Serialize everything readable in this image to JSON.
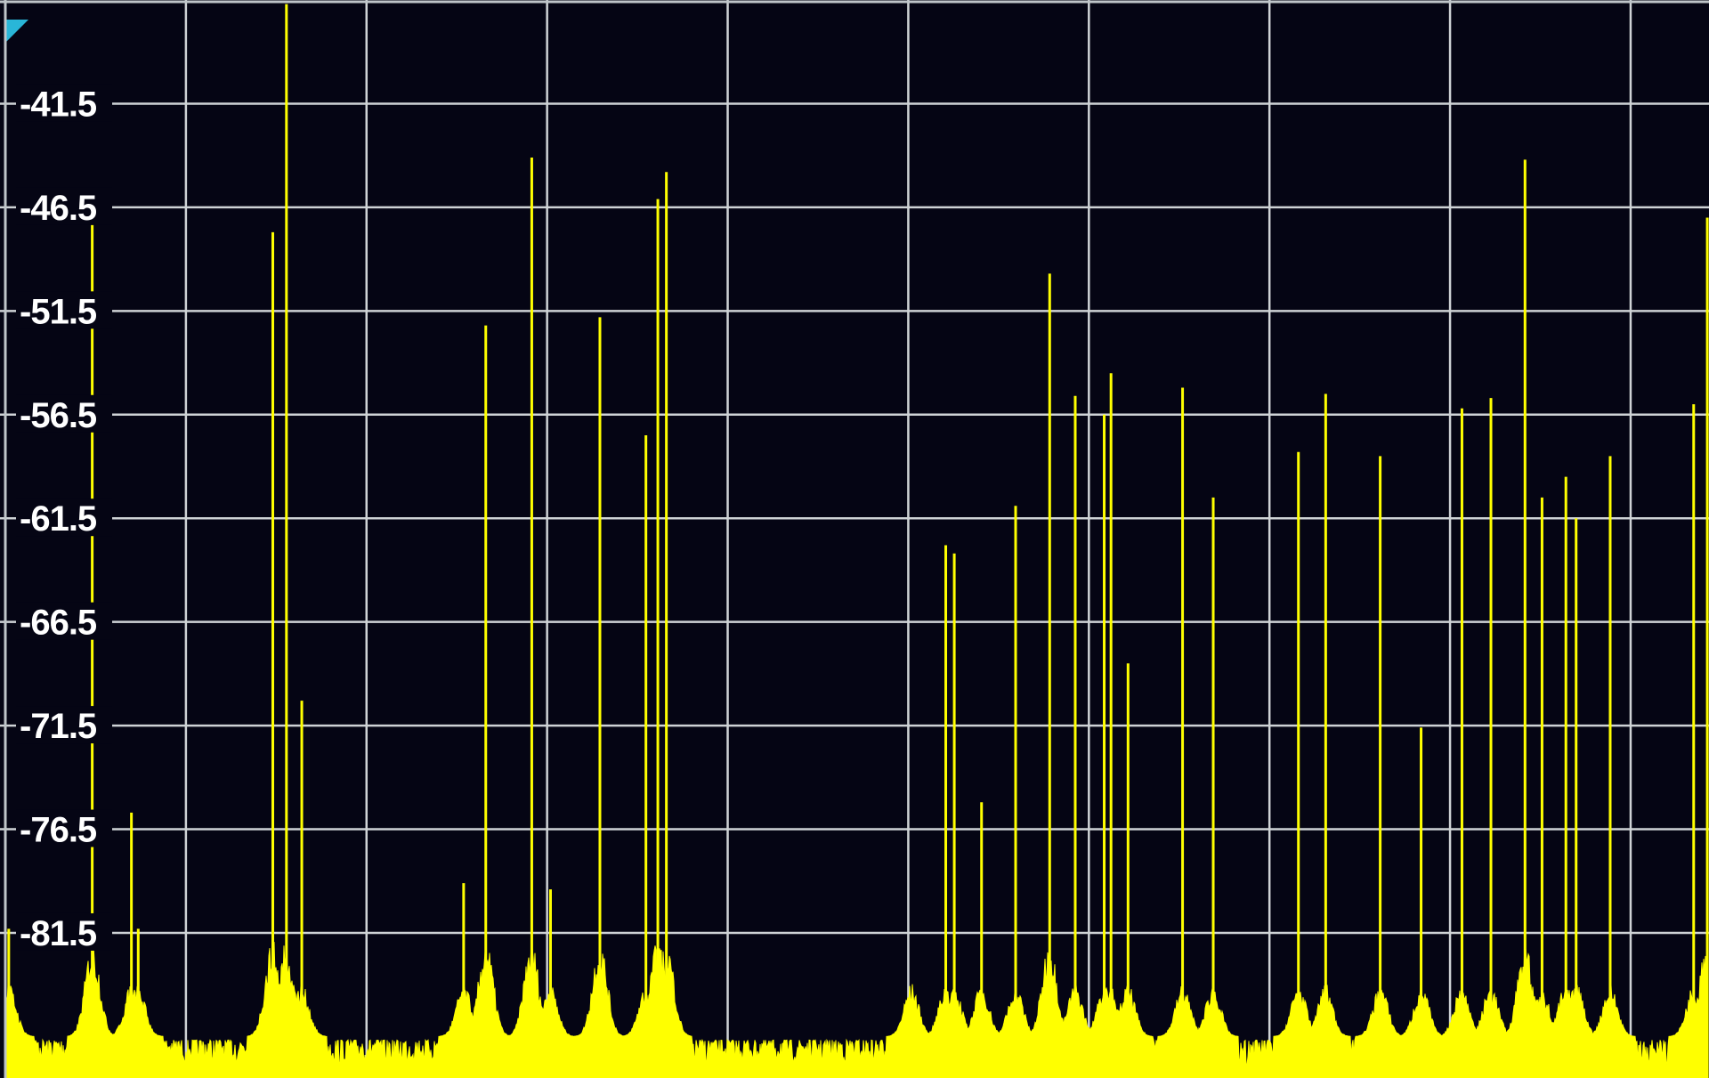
{
  "chart_data": {
    "type": "line",
    "title": "",
    "xlabel": "",
    "ylabel": "",
    "grid": true,
    "colors": {
      "background": "#050514",
      "grid": "#cfd3d6",
      "trace": "#ffff00",
      "marker": "#29b6d8"
    },
    "x": {
      "range": [
        0,
        100
      ],
      "ticks": [
        0,
        10.6,
        21.2,
        31.8,
        42.4,
        53.0,
        63.6,
        74.2,
        84.8,
        95.4
      ]
    },
    "y": {
      "range": [
        -88.5,
        -36.5
      ],
      "ticks": [
        -41.5,
        -46.5,
        -51.5,
        -56.5,
        -61.5,
        -66.5,
        -71.5,
        -76.5,
        -81.5
      ],
      "tick_labels": [
        "-41.5",
        "-46.5",
        "-51.5",
        "-56.5",
        "-61.5",
        "-66.5",
        "-71.5",
        "-76.5",
        "-81.5"
      ]
    },
    "noise_floor": -86.5,
    "series": [
      {
        "peaks": [
          {
            "x": 0.2,
            "y": -81.3
          },
          {
            "x": 5.1,
            "y": -45.7
          },
          {
            "x": 7.4,
            "y": -75.7
          },
          {
            "x": 7.8,
            "y": -81.3
          },
          {
            "x": 15.7,
            "y": -47.7
          },
          {
            "x": 16.5,
            "y": -36.7
          },
          {
            "x": 17.4,
            "y": -70.3
          },
          {
            "x": 26.9,
            "y": -79.1
          },
          {
            "x": 28.2,
            "y": -52.2
          },
          {
            "x": 30.9,
            "y": -44.1
          },
          {
            "x": 32.0,
            "y": -79.4
          },
          {
            "x": 34.9,
            "y": -51.8
          },
          {
            "x": 37.6,
            "y": -57.5
          },
          {
            "x": 38.3,
            "y": -46.1
          },
          {
            "x": 38.8,
            "y": -44.8
          },
          {
            "x": 53.2,
            "y": -85.2
          },
          {
            "x": 55.2,
            "y": -62.8
          },
          {
            "x": 55.7,
            "y": -63.2
          },
          {
            "x": 57.3,
            "y": -75.2
          },
          {
            "x": 59.3,
            "y": -60.9
          },
          {
            "x": 61.3,
            "y": -49.7
          },
          {
            "x": 62.8,
            "y": -55.6
          },
          {
            "x": 64.5,
            "y": -56.5
          },
          {
            "x": 64.9,
            "y": -54.5
          },
          {
            "x": 65.9,
            "y": -68.5
          },
          {
            "x": 69.1,
            "y": -55.2
          },
          {
            "x": 70.9,
            "y": -60.5
          },
          {
            "x": 75.9,
            "y": -58.3
          },
          {
            "x": 77.5,
            "y": -55.5
          },
          {
            "x": 80.7,
            "y": -58.5
          },
          {
            "x": 83.1,
            "y": -71.6
          },
          {
            "x": 85.5,
            "y": -56.2
          },
          {
            "x": 87.2,
            "y": -55.7
          },
          {
            "x": 89.2,
            "y": -44.2
          },
          {
            "x": 90.2,
            "y": -60.5
          },
          {
            "x": 91.6,
            "y": -59.5
          },
          {
            "x": 92.2,
            "y": -61.5
          },
          {
            "x": 94.2,
            "y": -58.5
          },
          {
            "x": 99.1,
            "y": -56.0
          },
          {
            "x": 99.9,
            "y": -47.0
          }
        ]
      }
    ]
  }
}
